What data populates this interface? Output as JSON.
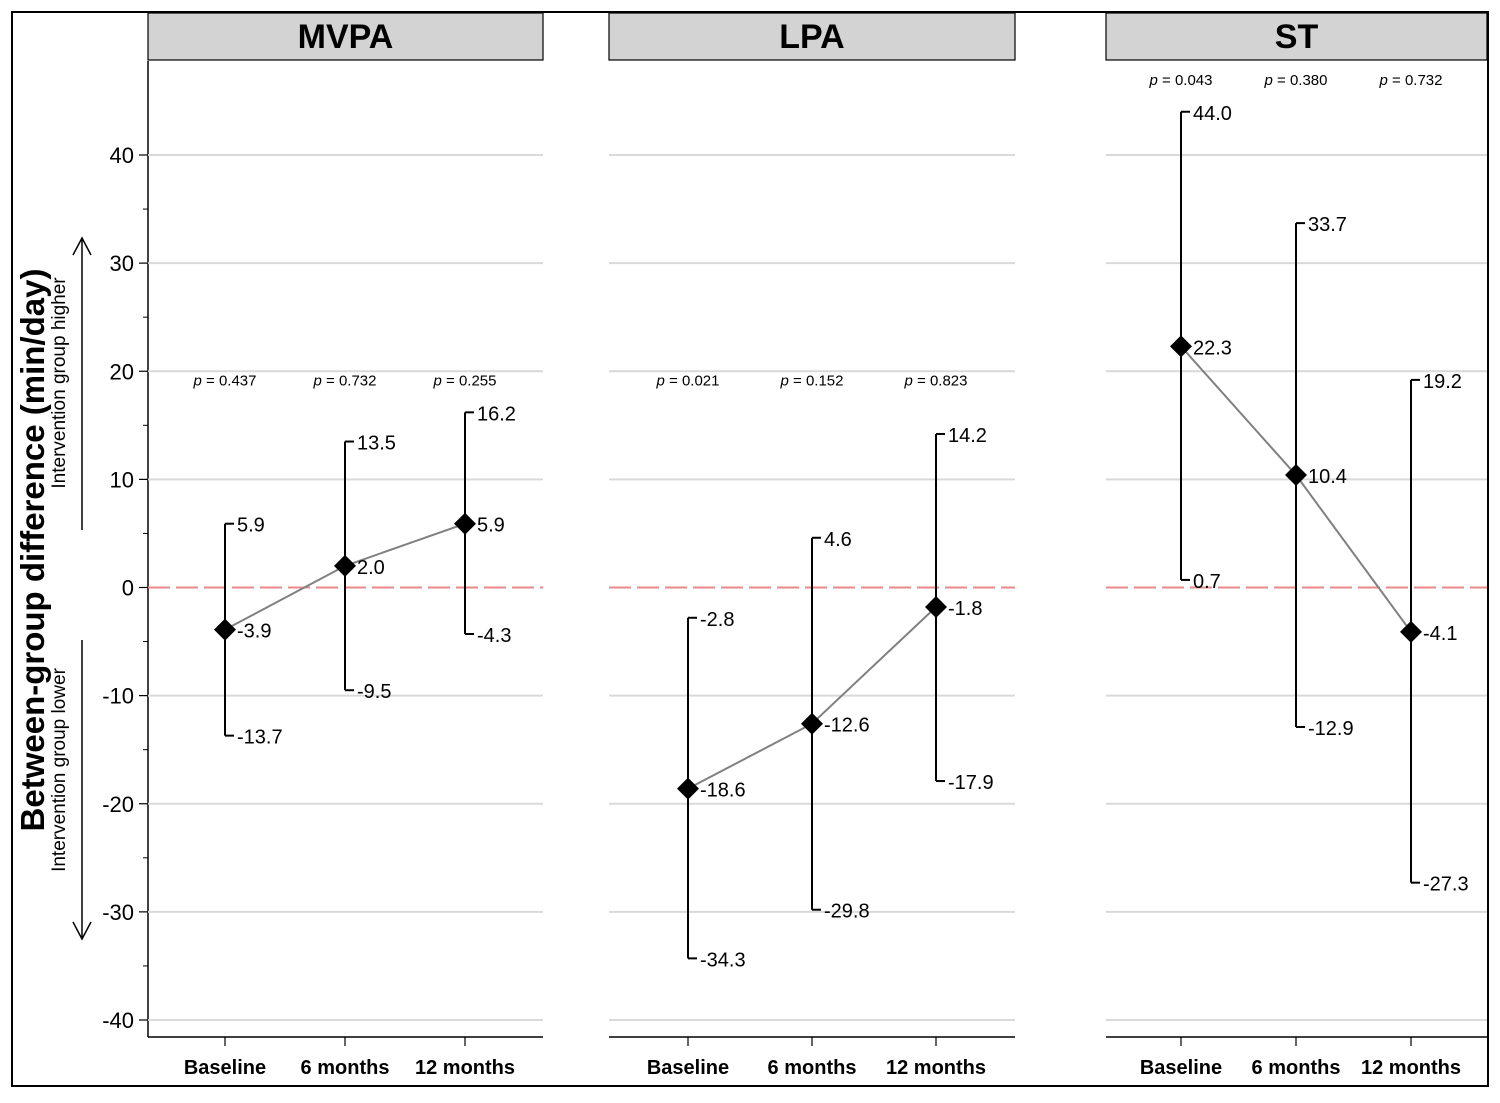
{
  "chart_data": {
    "type": "line",
    "ylabel": "Between-group difference (min/day)",
    "annotations": {
      "up": "Intervention group higher",
      "down": "Intervention group lower"
    },
    "ylim": [
      -40,
      40
    ],
    "yticks": [
      -40,
      -30,
      -20,
      -10,
      0,
      10,
      20,
      30,
      40
    ],
    "reference_line": 0,
    "categories": [
      "Baseline",
      "6 months",
      "12 months"
    ],
    "panels": [
      {
        "title": "MVPA",
        "p_values": [
          "0.437",
          "0.732",
          "0.255"
        ],
        "estimate": [
          -3.9,
          2.0,
          5.9
        ],
        "lower": [
          -13.7,
          -9.5,
          -4.3
        ],
        "upper": [
          5.9,
          13.5,
          16.2
        ],
        "estimate_labels": [
          "-3.9",
          "2.0",
          "5.9"
        ],
        "lower_labels": [
          "-13.7",
          "-9.5",
          "-4.3"
        ],
        "upper_labels": [
          "5.9",
          "13.5",
          "16.2"
        ]
      },
      {
        "title": "LPA",
        "p_values": [
          "0.021",
          "0.152",
          "0.823"
        ],
        "estimate": [
          -18.6,
          -12.6,
          -1.8
        ],
        "lower": [
          -34.3,
          -29.8,
          -17.9
        ],
        "upper": [
          -2.8,
          4.6,
          14.2
        ],
        "estimate_labels": [
          "-18.6",
          "-12.6",
          "-1.8"
        ],
        "lower_labels": [
          "-34.3",
          "-29.8",
          "-17.9"
        ],
        "upper_labels": [
          "-2.8",
          "4.6",
          "14.2"
        ]
      },
      {
        "title": "ST",
        "p_values": [
          "0.043",
          "0.380",
          "0.732"
        ],
        "estimate": [
          22.3,
          10.4,
          -4.1
        ],
        "lower": [
          0.7,
          -12.9,
          -27.3
        ],
        "upper": [
          44.0,
          33.7,
          19.2
        ],
        "estimate_labels": [
          "22.3",
          "10.4",
          "-4.1"
        ],
        "lower_labels": [
          "0.7",
          "-12.9",
          "-27.3"
        ],
        "upper_labels": [
          "44.0",
          "33.7",
          "19.2"
        ]
      }
    ],
    "colors": {
      "strip_fill": "#d3d3d3",
      "grid": "#d9d9d9",
      "connector": "#808080",
      "reference": "#e88a8a",
      "marker": "#000000"
    },
    "grid": true
  }
}
